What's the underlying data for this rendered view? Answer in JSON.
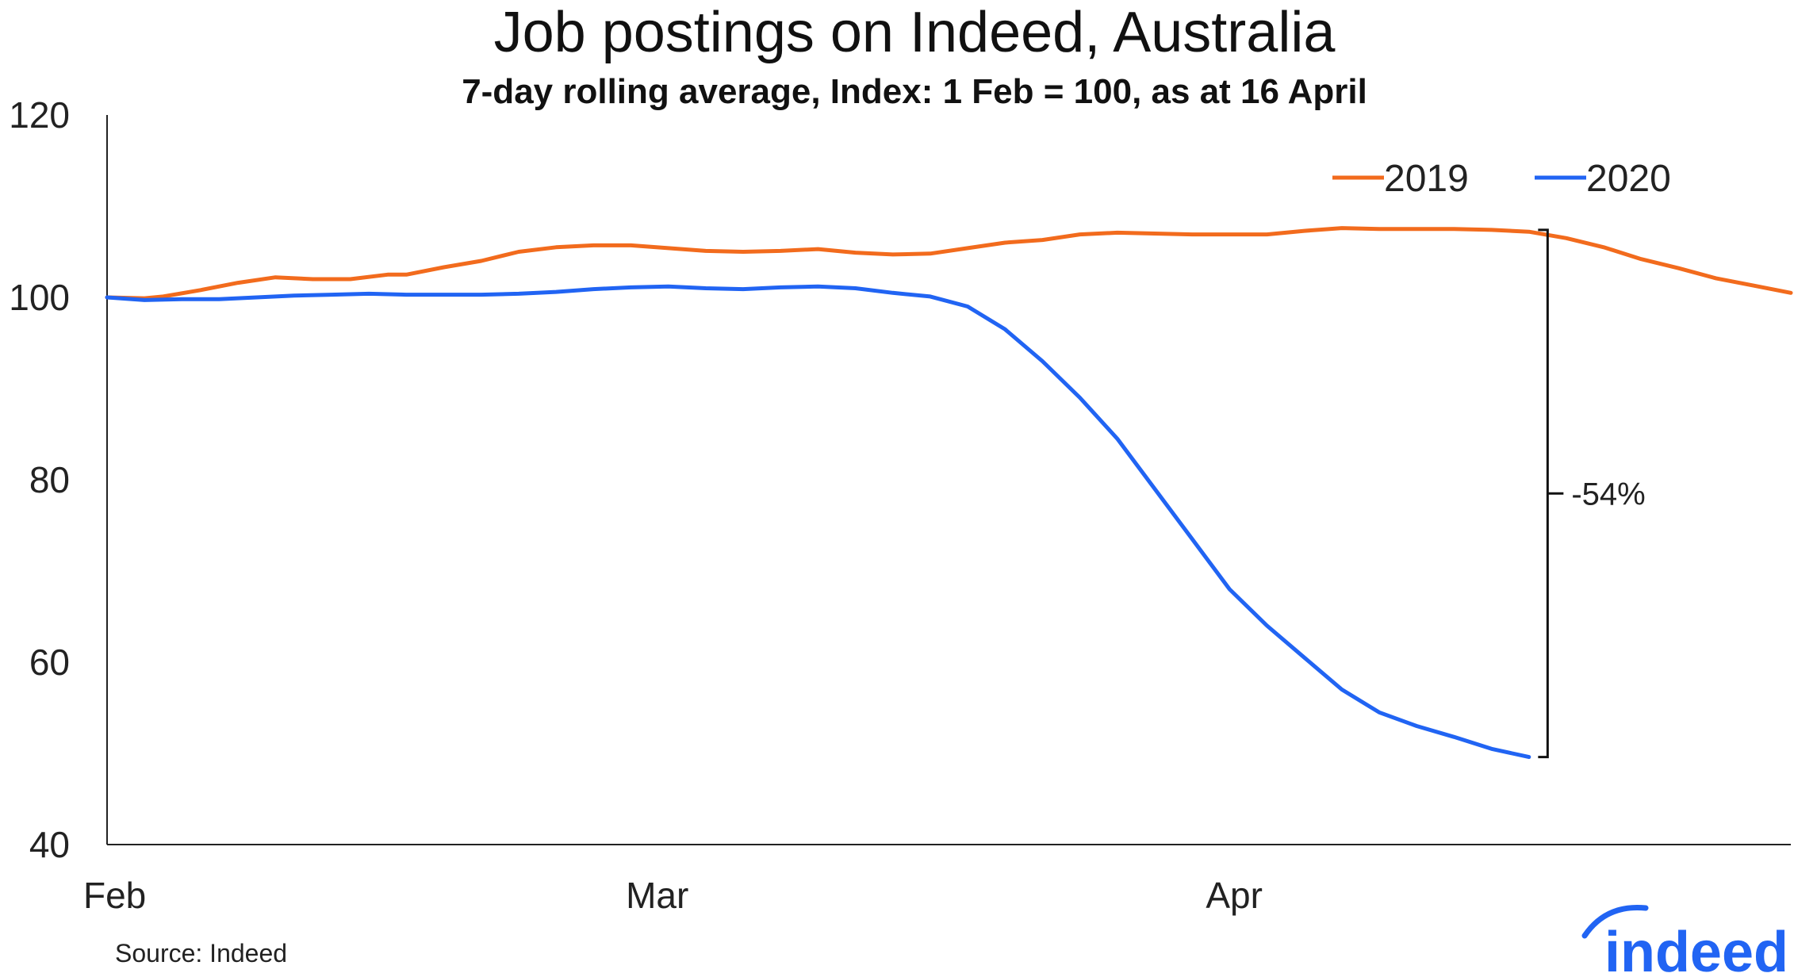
{
  "chart_data": {
    "type": "line",
    "title": "Job postings on Indeed, Australia",
    "subtitle": "7-day rolling average, Index: 1 Feb = 100, as at 16 April",
    "xlabel": "",
    "ylabel": "",
    "x_ticks": [
      "Feb",
      "Mar",
      "Apr"
    ],
    "x_tick_days": [
      0,
      29,
      60
    ],
    "x_range_days": [
      0,
      90
    ],
    "ylim": [
      40,
      120
    ],
    "y_ticks": [
      40,
      60,
      80,
      100,
      120
    ],
    "grid": false,
    "legend_position": "top-right",
    "series": [
      {
        "name": "2019",
        "color": "#f26b1d",
        "x": [
          0,
          2,
          3,
          5,
          7,
          9,
          11,
          13,
          15,
          16,
          18,
          20,
          22,
          24,
          26,
          28,
          30,
          32,
          34,
          36,
          38,
          40,
          42,
          44,
          46,
          48,
          50,
          52,
          54,
          56,
          58,
          60,
          62,
          64,
          66,
          68,
          70,
          72,
          74,
          76,
          78,
          80,
          82,
          84,
          86,
          88,
          90
        ],
        "values": [
          100.0,
          99.9,
          100.1,
          100.8,
          101.6,
          102.2,
          102.0,
          102.0,
          102.5,
          102.5,
          103.3,
          104.0,
          105.0,
          105.5,
          105.7,
          105.7,
          105.4,
          105.1,
          105.0,
          105.1,
          105.3,
          104.9,
          104.7,
          104.8,
          105.4,
          106.0,
          106.3,
          106.9,
          107.1,
          107.0,
          106.9,
          106.9,
          106.9,
          107.3,
          107.6,
          107.5,
          107.5,
          107.5,
          107.4,
          107.2,
          106.5,
          105.5,
          104.2,
          103.2,
          102.1,
          101.3,
          100.5
        ]
      },
      {
        "name": "2020",
        "color": "#2164f3",
        "x": [
          0,
          2,
          4,
          6,
          8,
          10,
          12,
          14,
          16,
          18,
          20,
          22,
          24,
          26,
          28,
          30,
          32,
          34,
          36,
          38,
          40,
          42,
          44,
          46,
          48,
          50,
          52,
          54,
          56,
          58,
          60,
          62,
          64,
          66,
          68,
          70,
          72,
          74,
          76
        ],
        "values": [
          100.0,
          99.7,
          99.8,
          99.8,
          100.0,
          100.2,
          100.3,
          100.4,
          100.3,
          100.3,
          100.3,
          100.4,
          100.6,
          100.9,
          101.1,
          101.2,
          101.0,
          100.9,
          101.1,
          101.2,
          101.0,
          100.5,
          100.1,
          99.0,
          96.5,
          93.0,
          89.0,
          84.5,
          79.0,
          73.5,
          68.0,
          64.0,
          60.5,
          57.0,
          54.5,
          53.0,
          51.8,
          50.5,
          49.6
        ]
      }
    ],
    "annotation": {
      "label": "-54%",
      "x_day": 77,
      "y_top": 107.4,
      "y_bottom": 49.6
    }
  },
  "source": "Source: Indeed",
  "logo_text": "indeed",
  "logo_color": "#2164f3"
}
